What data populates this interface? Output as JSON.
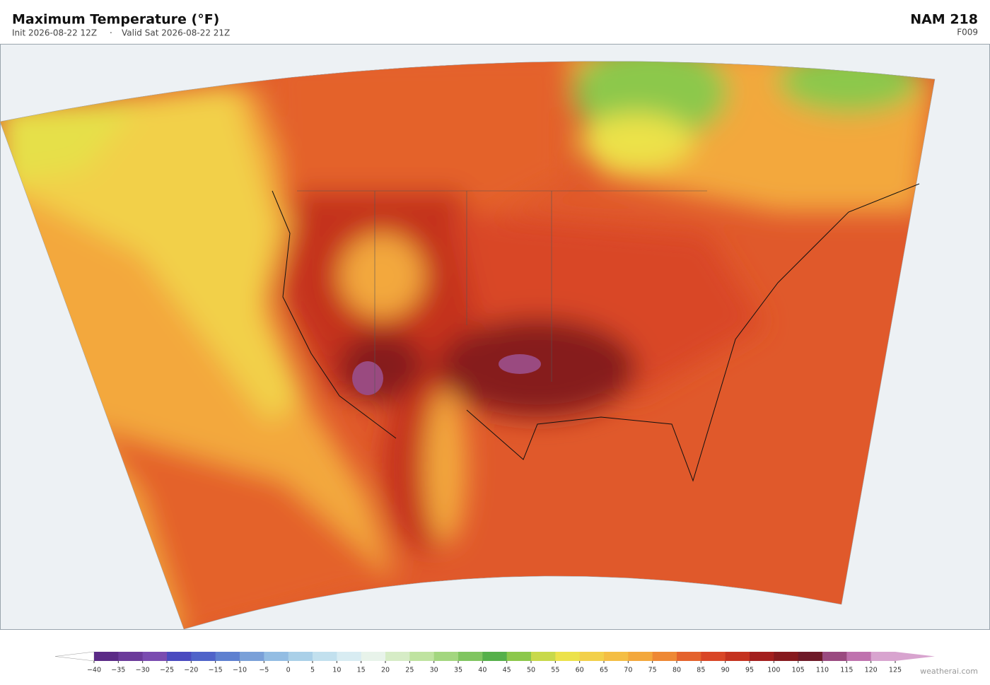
{
  "header": {
    "title": "Maximum Temperature  (°F)",
    "init": "Init 2026-08-22 12Z",
    "separator": "·",
    "valid": "Valid Sat 2026-08-22 21Z",
    "model": "NAM  218",
    "forecast_hour": "F009"
  },
  "colorbar": {
    "ticks": [
      {
        "value": -40,
        "label": "−40"
      },
      {
        "value": -35,
        "label": "−35"
      },
      {
        "value": -30,
        "label": "−30"
      },
      {
        "value": -25,
        "label": "−25"
      },
      {
        "value": -20,
        "label": "−20"
      },
      {
        "value": -15,
        "label": "−15"
      },
      {
        "value": -10,
        "label": "−10"
      },
      {
        "value": -5,
        "label": "−5"
      },
      0,
      5,
      10,
      15,
      20,
      25,
      30,
      35,
      40,
      45,
      50,
      55,
      60,
      65,
      70,
      75,
      80,
      85,
      90,
      95,
      100,
      105,
      110,
      115,
      120,
      125
    ],
    "colors": [
      "#5b2a86",
      "#6b3a9a",
      "#7a4bb0",
      "#4a4abf",
      "#4f63c9",
      "#5e80d0",
      "#7aa0d8",
      "#93bde3",
      "#aad0e8",
      "#c2e0ee",
      "#d8ecf2",
      "#e8f3ea",
      "#d6ecc6",
      "#bfe3a0",
      "#a3d67f",
      "#80c560",
      "#55b04a",
      "#8cc84b",
      "#c8d94a",
      "#ece24a",
      "#f2d04a",
      "#f4be44",
      "#f3a83c",
      "#ee8834",
      "#e4622c",
      "#d94626",
      "#c4321f",
      "#a31f1e",
      "#861a1e",
      "#6e1a28",
      "#9a4a80",
      "#bf72ae",
      "#d8a4cf"
    ],
    "under_color": "#ffffff",
    "over_color": "#d8a4cf"
  },
  "watermark": "weatherai.com"
}
